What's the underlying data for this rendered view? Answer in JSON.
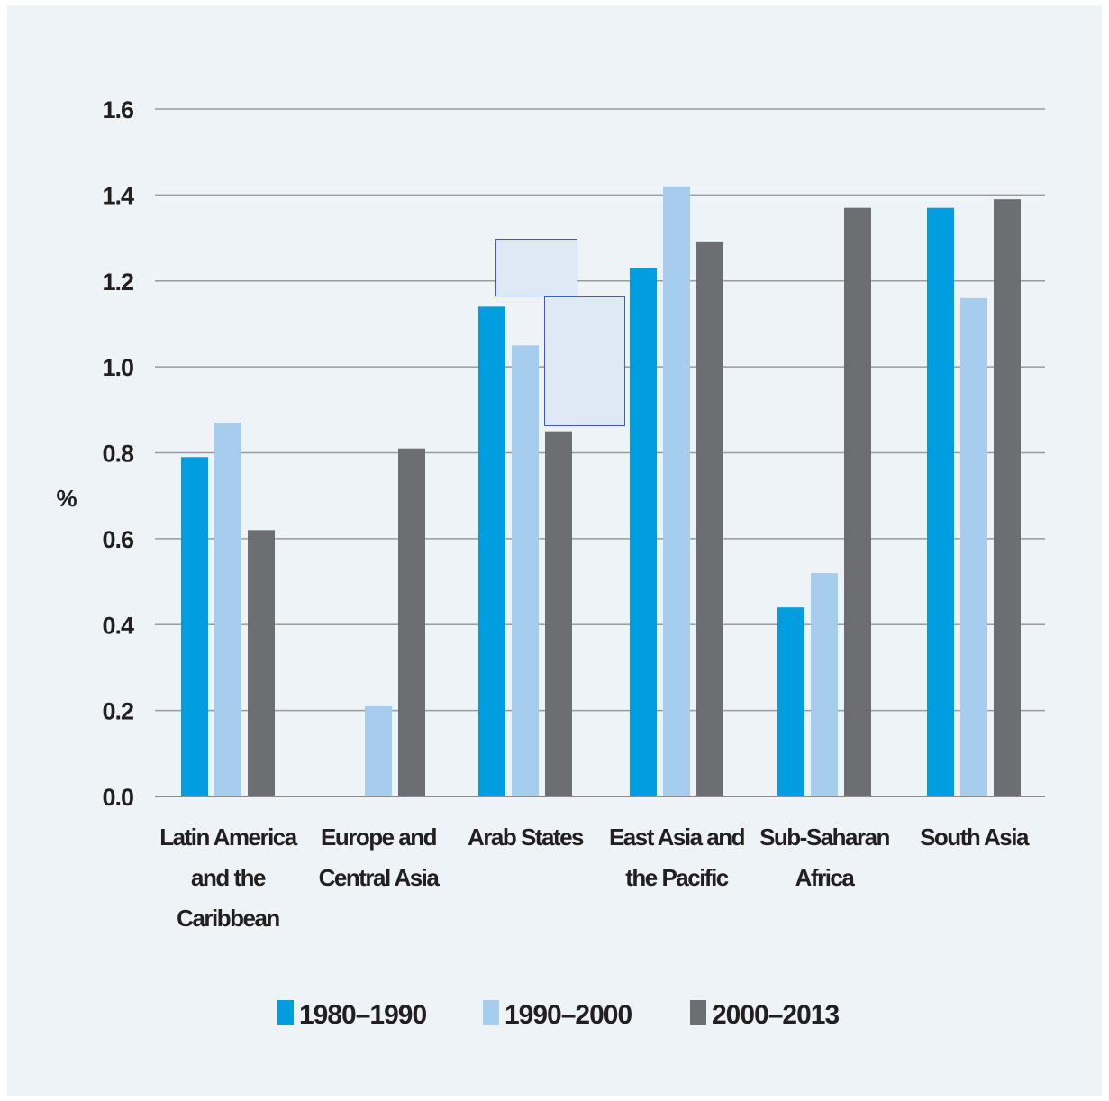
{
  "chart_data": {
    "type": "bar",
    "ylabel": "%",
    "xlabel": "",
    "ylim": [
      0,
      1.6
    ],
    "yticks": [
      "0.0",
      "0.2",
      "0.4",
      "0.6",
      "0.8",
      "1.0",
      "1.2",
      "1.4",
      "1.6"
    ],
    "grid": true,
    "legend_position": "bottom",
    "categories": [
      [
        "Latin America",
        "and the",
        "Caribbean"
      ],
      [
        "Europe and",
        "Central Asia"
      ],
      [
        "Arab States"
      ],
      [
        "East Asia and",
        "the Pacific"
      ],
      [
        "Sub-Saharan",
        "Africa"
      ],
      [
        "South Asia"
      ]
    ],
    "series": [
      {
        "name": "1980–1990",
        "color": "#009ee0",
        "values": [
          0.79,
          null,
          1.14,
          1.23,
          0.44,
          1.37
        ]
      },
      {
        "name": "1990–2000",
        "color": "#a7cdee",
        "values": [
          0.87,
          0.21,
          1.05,
          1.42,
          0.52,
          1.16
        ]
      },
      {
        "name": "2000–2013",
        "color": "#6d6e71",
        "values": [
          0.62,
          0.81,
          0.85,
          1.29,
          1.37,
          1.39
        ]
      }
    ]
  }
}
